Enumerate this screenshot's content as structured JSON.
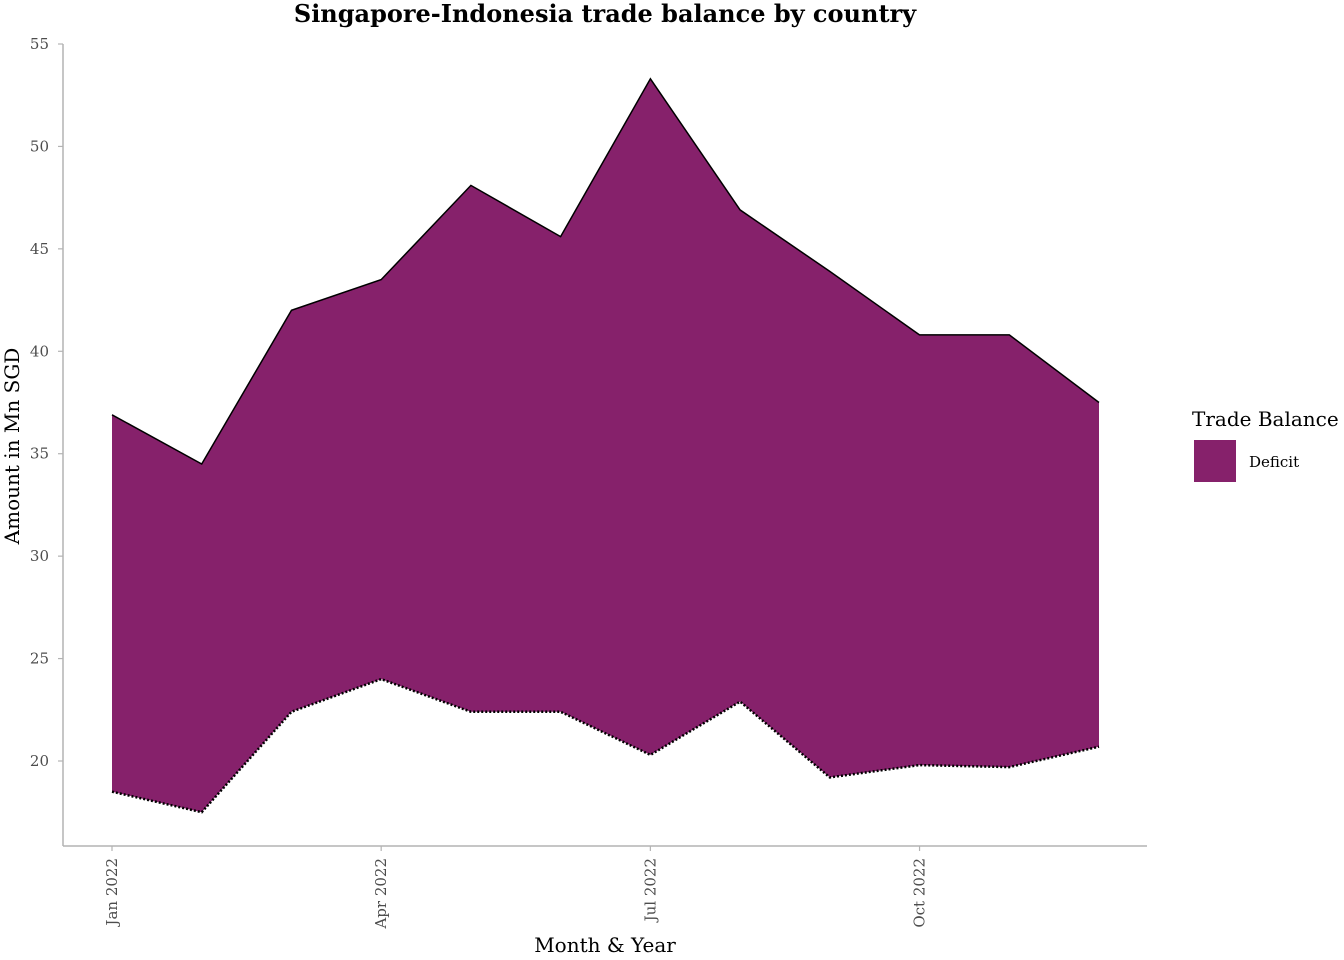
{
  "chart_data": {
    "type": "area",
    "title": "Singapore-Indonesia trade balance by country",
    "xlabel": "Month & Year",
    "ylabel": "Amount in Mn SGD",
    "x": [
      "2022-01",
      "2022-02",
      "2022-03",
      "2022-04",
      "2022-05",
      "2022-06",
      "2022-07",
      "2022-08",
      "2022-09",
      "2022-10",
      "2022-11",
      "2022-12"
    ],
    "x_tick_labels": [
      {
        "x": "2022-01",
        "label": "Jan 2022"
      },
      {
        "x": "2022-04",
        "label": "Apr 2022"
      },
      {
        "x": "2022-07",
        "label": "Jul 2022"
      },
      {
        "x": "2022-10",
        "label": "Oct 2022"
      }
    ],
    "y_ticks": [
      20,
      25,
      30,
      35,
      40,
      45,
      50,
      55
    ],
    "ylim": [
      16.2,
      55
    ],
    "grid": false,
    "legend_position": "right",
    "legend_title": "Trade Balance",
    "series": [
      {
        "name": "Deficit",
        "color": "#86216B",
        "upper": [
          36.9,
          34.5,
          42.0,
          43.5,
          48.1,
          45.6,
          53.3,
          46.9,
          43.9,
          40.8,
          40.8,
          37.5
        ],
        "lower": [
          18.5,
          17.5,
          22.4,
          24.0,
          22.4,
          22.4,
          20.3,
          22.9,
          19.2,
          19.8,
          19.7,
          20.7
        ]
      }
    ]
  }
}
